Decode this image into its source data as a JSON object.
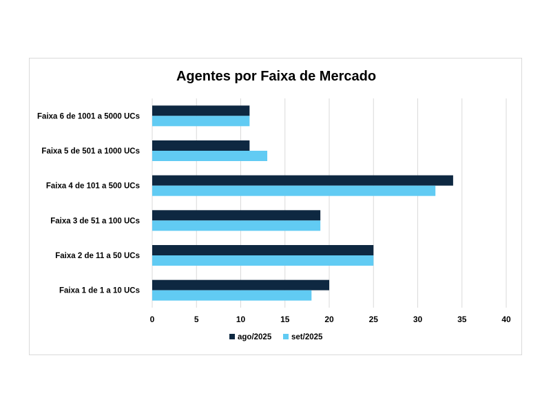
{
  "chart_data": {
    "type": "bar",
    "orientation": "horizontal",
    "title": "Agentes por Faixa de Mercado",
    "xlabel": "",
    "ylabel": "",
    "categories": [
      "Faixa 6 de 1001 a 5000 UCs",
      "Faixa 5 de 501 a 1000 UCs",
      "Faixa 4 de 101 a 500 UCs",
      "Faixa 3 de 51 a 100 UCs",
      "Faixa 2 de 11 a 50 UCs",
      "Faixa 1 de 1 a 10 UCs"
    ],
    "series": [
      {
        "name": "ago/2025",
        "color": "#0e2841",
        "values": [
          11,
          11,
          34,
          19,
          25,
          20
        ]
      },
      {
        "name": "set/2025",
        "color": "#61cbf3",
        "values": [
          11,
          13,
          32,
          19,
          25,
          18
        ]
      }
    ],
    "xlim": [
      0,
      40
    ],
    "xticks": [
      "0",
      "5",
      "10",
      "15",
      "20",
      "25",
      "30",
      "35",
      "40"
    ],
    "grid": "vertical",
    "legend": "bottom"
  }
}
